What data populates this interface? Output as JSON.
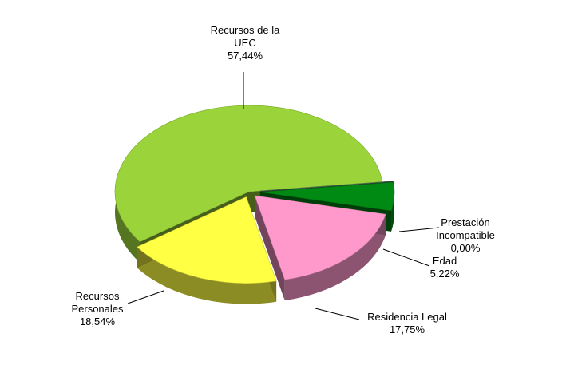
{
  "chart_data": {
    "type": "pie",
    "categories": [
      "Recursos de la UEC",
      "Prestación Incompatible",
      "Edad",
      "Residencia Legal",
      "Recursos Personales"
    ],
    "values": [
      57.44,
      0.0,
      5.22,
      17.75,
      18.54
    ],
    "value_labels": [
      "57,44%",
      "0,00%",
      "5,22%",
      "17,75%",
      "18,54%"
    ],
    "colors": [
      "#9ad43a",
      "#5c8f6e",
      "#008a14",
      "#ff99cc",
      "#ffff44"
    ]
  }
}
